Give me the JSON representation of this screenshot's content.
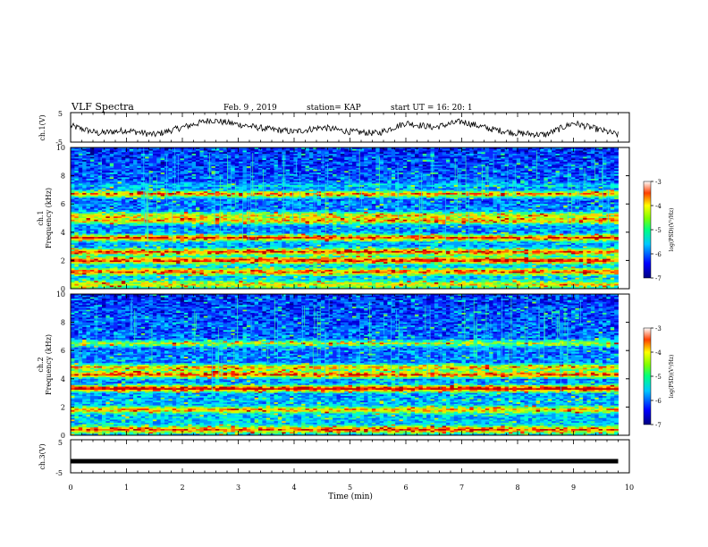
{
  "header": {
    "title": "VLF Spectra",
    "date": "Feb. 9 , 2019",
    "station": "station= KAP",
    "start": "start  UT =   16: 20: 1"
  },
  "chart_data": [
    {
      "type": "line",
      "panel": "ch1-waveform",
      "ylabel": "ch.1(V)",
      "ylim": [
        -5,
        5
      ],
      "xlim": [
        0,
        10
      ],
      "yticks": [
        "5",
        "-5"
      ],
      "series": [
        {
          "x": [
            0,
            0.5,
            1,
            1.5,
            2,
            2.5,
            3,
            3.5,
            4,
            4.5,
            5,
            5.5,
            6,
            6.5,
            7,
            7.5,
            8,
            8.5,
            9,
            9.5,
            9.8
          ],
          "values": [
            0.5,
            -2,
            -1,
            -2.5,
            0,
            2.5,
            1,
            -0.5,
            -1.5,
            0,
            -1.5,
            -2,
            1.5,
            0,
            2,
            -0.5,
            -2,
            -2.5,
            1.5,
            -1,
            -2.5
          ]
        }
      ],
      "color": "#000000"
    },
    {
      "type": "heatmap",
      "panel": "ch1-spectrogram",
      "ylabel": "ch.1\nFrequency  (kHz)",
      "xlim": [
        0,
        9.8
      ],
      "ylim": [
        0,
        10
      ],
      "yticks": [
        "0",
        "2",
        "4",
        "6",
        "8",
        "10"
      ],
      "colorbar": {
        "label": "log(PSD)(V²/Hz)",
        "range": [
          -7,
          -3
        ],
        "ticks": [
          "-3",
          "-4",
          "-5",
          "-6",
          "-7"
        ]
      },
      "bands_khz": [
        [
          0.3,
          0.35
        ],
        [
          1.2,
          0.5
        ],
        [
          2.0,
          0.6
        ],
        [
          2.6,
          0.55
        ],
        [
          3.6,
          0.6
        ],
        [
          4.8,
          0.5
        ],
        [
          5.2,
          0.45
        ],
        [
          6.7,
          0.6
        ],
        [
          7.3,
          0.15
        ]
      ]
    },
    {
      "type": "heatmap",
      "panel": "ch2-spectrogram",
      "ylabel": "ch.2\nFrequency  (kHz)",
      "xlim": [
        0,
        9.8
      ],
      "ylim": [
        0,
        10
      ],
      "yticks": [
        "0",
        "2",
        "4",
        "6",
        "8",
        "10"
      ],
      "colorbar": {
        "label": "log(PSD)(V²/Hz)",
        "range": [
          -7,
          -3
        ],
        "ticks": [
          "-3",
          "-4",
          "-5",
          "-6",
          "-7"
        ]
      },
      "bands_khz": [
        [
          0.4,
          0.5
        ],
        [
          1.8,
          0.45
        ],
        [
          3.3,
          0.7
        ],
        [
          4.3,
          0.6
        ],
        [
          4.8,
          0.5
        ],
        [
          6.5,
          0.4
        ]
      ]
    },
    {
      "type": "line",
      "panel": "ch3-waveform",
      "ylabel": "ch.3(V)",
      "ylim": [
        -5,
        5
      ],
      "xlim": [
        0,
        10
      ],
      "yticks": [
        "5",
        "-5"
      ],
      "series": [
        {
          "x": [
            0,
            9.8
          ],
          "values": [
            -1.5,
            -1.5
          ]
        }
      ],
      "color": "#000000"
    }
  ],
  "xaxis": {
    "label": "Time  (min)",
    "ticks": [
      "0",
      "1",
      "2",
      "3",
      "4",
      "5",
      "6",
      "7",
      "8",
      "9",
      "10"
    ],
    "range": [
      0,
      10
    ]
  }
}
